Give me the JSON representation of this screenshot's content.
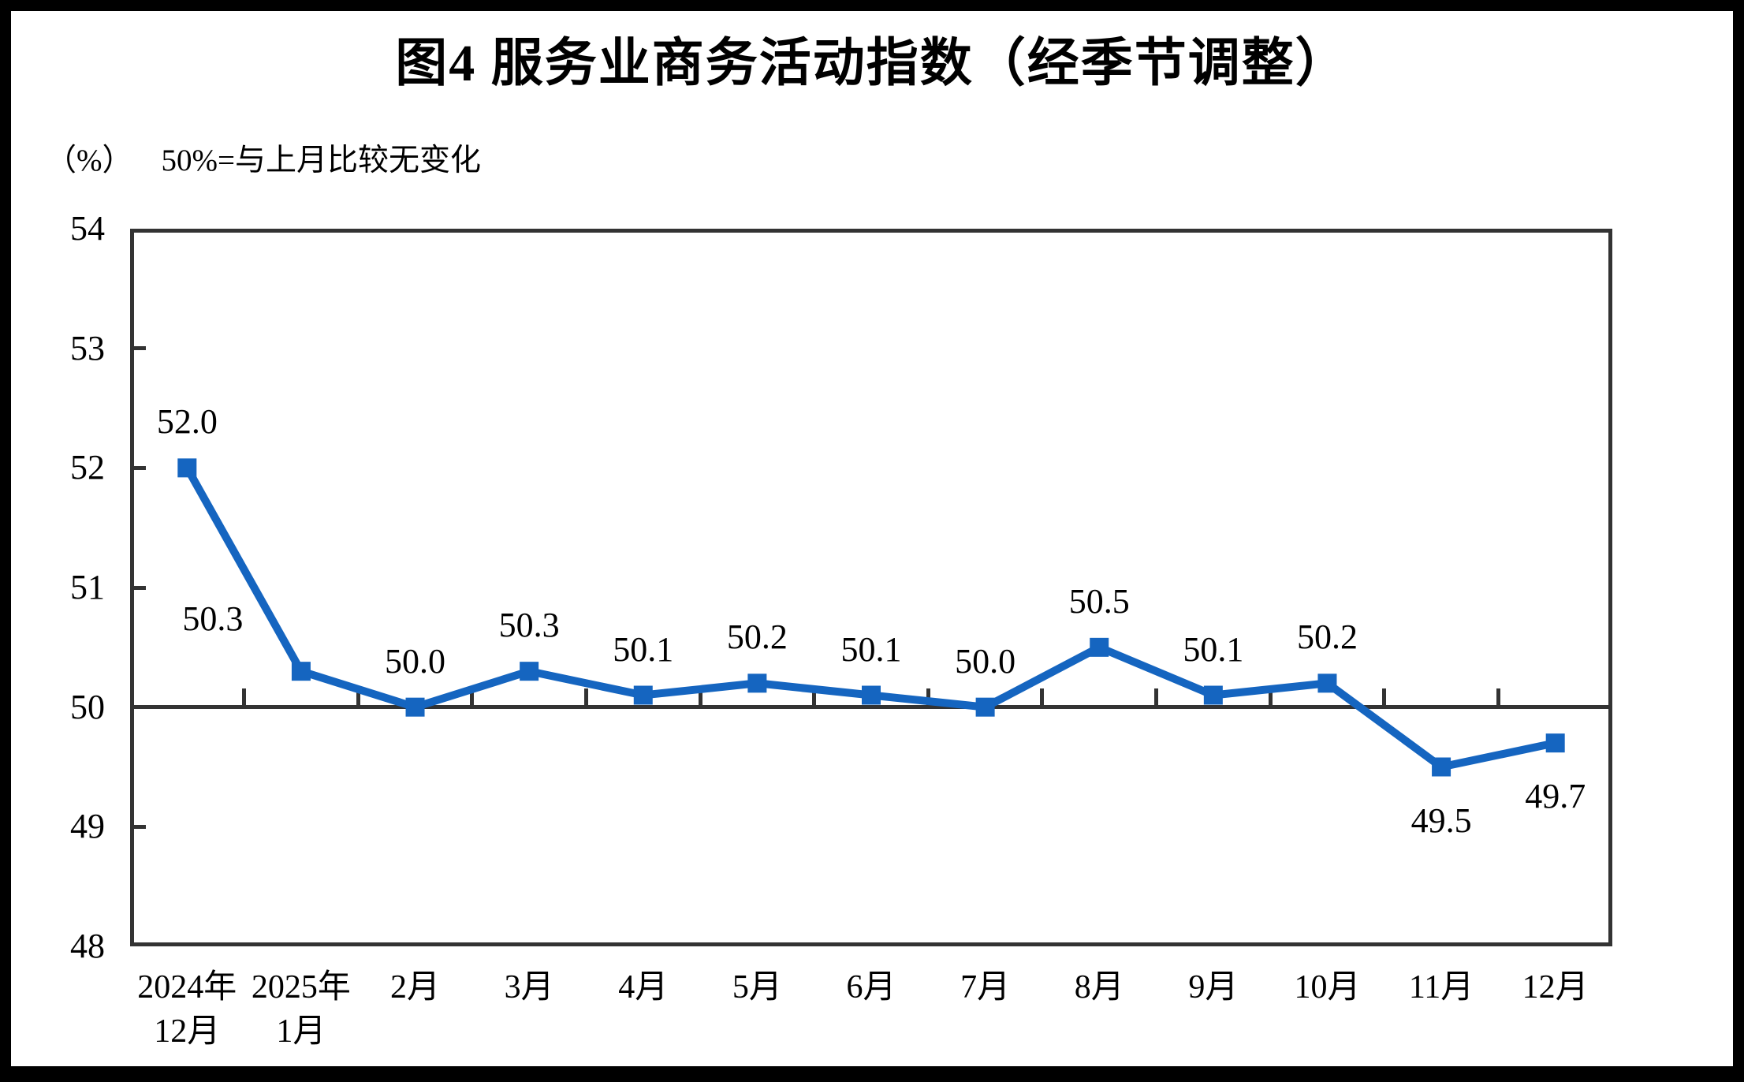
{
  "page": {
    "title": "图4 服务业商务活动指数（经季节调整）",
    "unit_label": "（%）",
    "axis_note": "50%=与上月比较无变化"
  },
  "chart_data": {
    "type": "line",
    "title": "图4 服务业商务活动指数（经季节调整）",
    "ylabel": "（%）",
    "annotation": "50%=与上月比较无变化",
    "categories": [
      "2024年12月",
      "2025年1月",
      "2月",
      "3月",
      "4月",
      "5月",
      "6月",
      "7月",
      "8月",
      "9月",
      "10月",
      "11月",
      "12月"
    ],
    "category_label_lines": [
      [
        "2024年",
        "12月"
      ],
      [
        "2025年",
        "1月"
      ],
      [
        "2月"
      ],
      [
        "3月"
      ],
      [
        "4月"
      ],
      [
        "5月"
      ],
      [
        "6月"
      ],
      [
        "7月"
      ],
      [
        "8月"
      ],
      [
        "9月"
      ],
      [
        "10月"
      ],
      [
        "11月"
      ],
      [
        "12月"
      ]
    ],
    "series": [
      {
        "name": "服务业商务活动指数",
        "values": [
          52.0,
          50.3,
          50.0,
          50.3,
          50.1,
          50.2,
          50.1,
          50.0,
          50.5,
          50.1,
          50.2,
          49.5,
          49.7
        ]
      }
    ],
    "data_labels": [
      "52.0",
      "50.3",
      "50.0",
      "50.3",
      "50.1",
      "50.2",
      "50.1",
      "50.0",
      "50.5",
      "50.1",
      "50.2",
      "49.5",
      "49.7"
    ],
    "ylim": [
      48,
      54
    ],
    "yticks": [
      48,
      49,
      50,
      51,
      52,
      53,
      54
    ],
    "reference_line": 50,
    "grid": false,
    "legend_position": "none",
    "marker": "square",
    "label_positions": {
      "1": "above-left",
      "11": "below",
      "12": "below"
    },
    "colors": {
      "line": "#1565C0",
      "axis": "#333333",
      "text": "#000000",
      "background": "#FFFFFF"
    }
  }
}
